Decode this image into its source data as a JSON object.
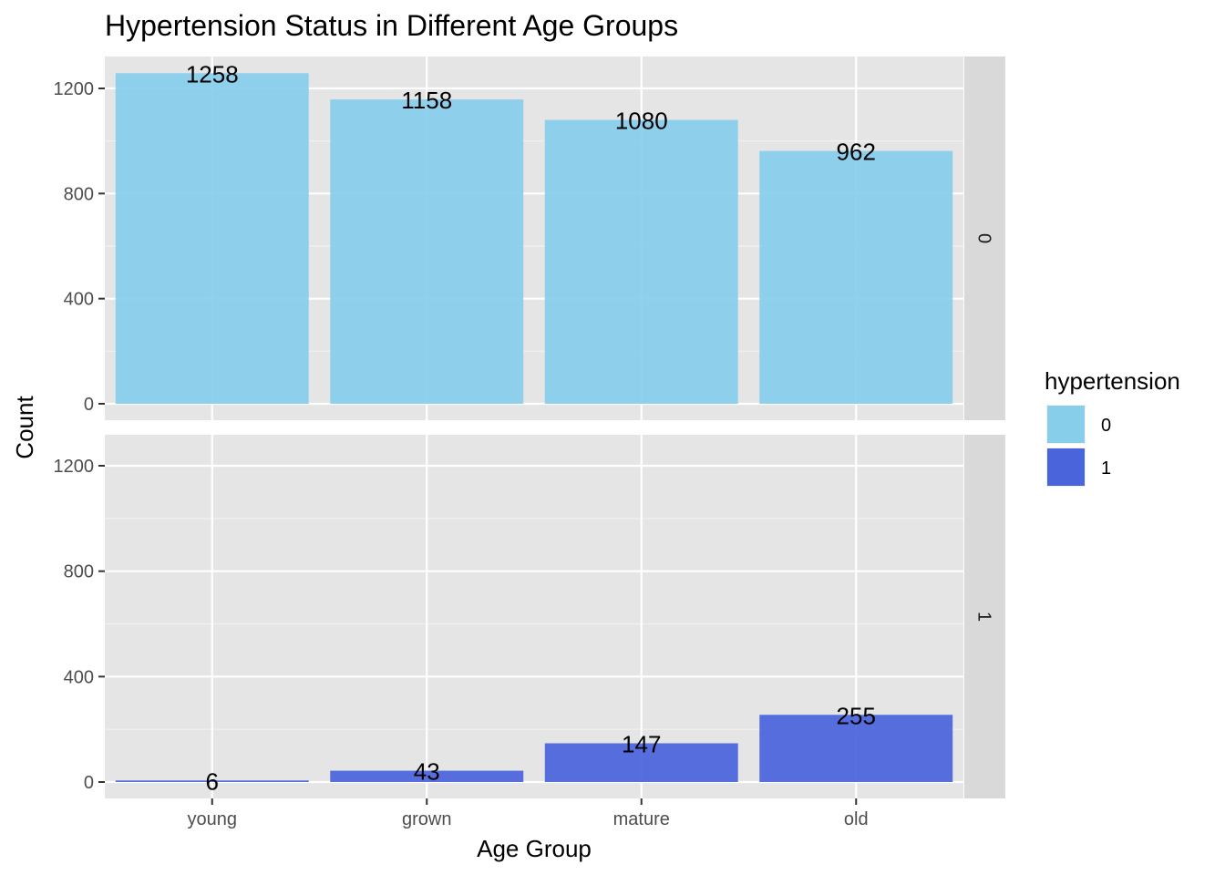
{
  "chart_data": {
    "type": "bar",
    "title": "Hypertension Status in Different Age Groups",
    "xlabel": "Age Group",
    "ylabel": "Count",
    "categories": [
      "young",
      "grown",
      "mature",
      "old"
    ],
    "ylim": [
      0,
      1300
    ],
    "yticks": [
      0,
      400,
      800,
      1200
    ],
    "facet_by": "hypertension",
    "grid": true,
    "legend_position": "right",
    "series": [
      {
        "name": "0",
        "facet_label": "0",
        "color": "#87CEEB",
        "values": [
          1258,
          1158,
          1080,
          962
        ]
      },
      {
        "name": "1",
        "facet_label": "1",
        "color": "#4A64DC",
        "values": [
          6,
          43,
          147,
          255
        ]
      }
    ],
    "legend": {
      "title": "hypertension",
      "entries": [
        "0",
        "1"
      ]
    }
  }
}
